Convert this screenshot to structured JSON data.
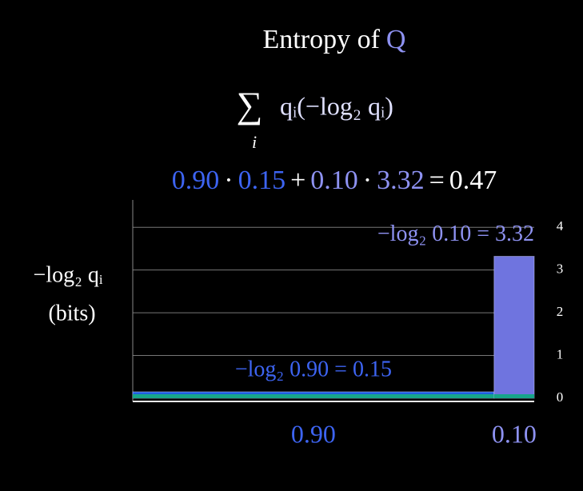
{
  "chart_data": {
    "type": "bar",
    "title": "Entropy of",
    "title_symbol": "Q",
    "formula_sum": "∑",
    "formula_index": "i",
    "formula_body": "qᵢ(−log₂ qᵢ)",
    "equation": [
      "0.90",
      "·",
      "0.15",
      "+",
      "0.10",
      "·",
      "3.32",
      "=",
      "0.47"
    ],
    "equation_colors": [
      "#3d64f2",
      "#ffffff",
      "#3d64f2",
      "#ffffff",
      "#8e92f2",
      "#ffffff",
      "#8e92f2",
      "#ffffff",
      "#ffffff"
    ],
    "ylabel": "−log₂ qᵢ",
    "ylabel_unit": "(bits)",
    "widths": [
      0.9,
      0.1
    ],
    "width_labels": [
      "0.90",
      "0.10"
    ],
    "values": [
      0.15,
      3.32
    ],
    "value_labels": [
      "−log₂ 0.90 = 0.15",
      "−log₂ 0.10 = 3.32"
    ],
    "colors": [
      "#1f5fe0",
      "#6f74df"
    ],
    "label_colors": [
      "#3d64f2",
      "#8e92f2"
    ],
    "xlim": [
      0,
      1
    ],
    "ylim": [
      0,
      4.64
    ],
    "yticks": [
      0,
      1,
      2,
      3,
      4
    ],
    "grid": true
  }
}
